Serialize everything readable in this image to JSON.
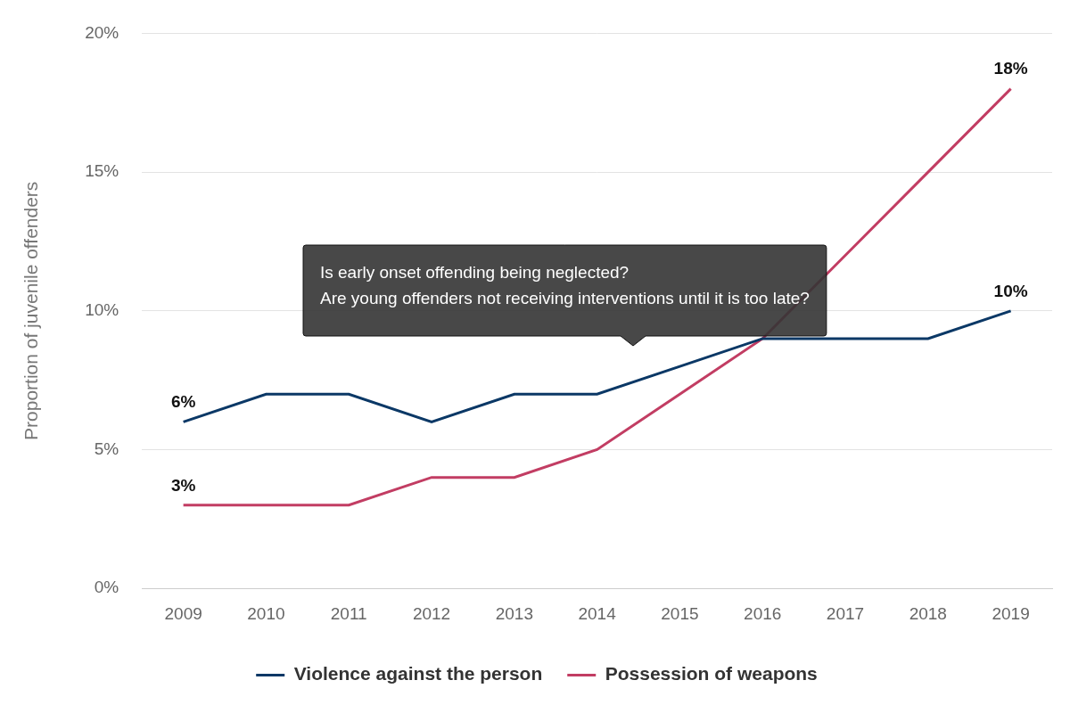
{
  "chart_data": {
    "type": "line",
    "y_label": "Proportion of juvenile offenders",
    "categories": [
      "2009",
      "2010",
      "2011",
      "2012",
      "2013",
      "2014",
      "2015",
      "2016",
      "2017",
      "2018",
      "2019"
    ],
    "series": [
      {
        "name": "Violence against the person",
        "color": "#0b3866",
        "values": [
          6,
          7,
          7,
          6,
          7,
          7,
          8,
          9,
          9,
          9,
          10
        ],
        "value_labels": [
          "6%",
          null,
          null,
          null,
          null,
          null,
          null,
          null,
          null,
          null,
          "10%"
        ]
      },
      {
        "name": "Possession of weapons",
        "color": "#c23d63",
        "values": [
          3,
          3,
          3,
          4,
          4,
          5,
          7,
          9,
          12,
          15,
          18
        ],
        "value_labels": [
          "3%",
          null,
          null,
          null,
          null,
          null,
          null,
          null,
          null,
          null,
          "18%"
        ]
      }
    ],
    "ylim": [
      0,
      20
    ],
    "yticks": [
      {
        "value": 0,
        "label": "0%"
      },
      {
        "value": 5,
        "label": "5%"
      },
      {
        "value": 10,
        "label": "10%"
      },
      {
        "value": 15,
        "label": "15%"
      },
      {
        "value": 20,
        "label": "20%"
      }
    ],
    "grid": true,
    "legend": "bottom",
    "data_labels": true,
    "annotations": [
      {
        "text": [
          "Is early onset offending being neglected?",
          "Are young offenders not receiving interventions until it is too late?"
        ]
      }
    ]
  }
}
